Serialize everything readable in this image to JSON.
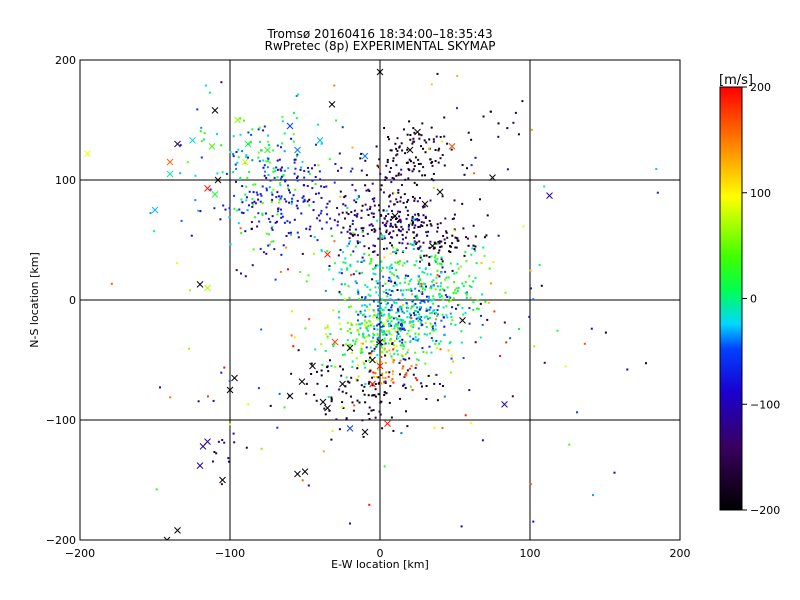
{
  "chart_data": {
    "type": "scatter",
    "title": "Tromsø 20160416 18:34:00–18:35:43",
    "subtitle": "RwPretec (8p) EXPERIMENTAL SKYMAP",
    "xlabel": "E-W location [km]",
    "ylabel": "N-S location [km]",
    "xlim": [
      -200,
      200
    ],
    "ylim": [
      -200,
      200
    ],
    "xticks": [
      -200,
      -100,
      0,
      100,
      200
    ],
    "yticks": [
      -200,
      -100,
      0,
      100,
      200
    ],
    "grid": true,
    "colorbar": {
      "label": "[m/s]",
      "min": -200,
      "max": 200,
      "ticks": [
        -200,
        -100,
        0,
        100,
        200
      ],
      "colormap": "black-purple-blue-cyan-green-yellow-red"
    },
    "clusters": [
      {
        "x": 5,
        "y": 65,
        "sx": 18,
        "sy": 18,
        "n": 230,
        "vmin": -200,
        "vmax": -90
      },
      {
        "x": 20,
        "y": 120,
        "sx": 14,
        "sy": 14,
        "n": 110,
        "vmin": -200,
        "vmax": -150
      },
      {
        "x": 40,
        "y": 50,
        "sx": 12,
        "sy": 12,
        "n": 70,
        "vmin": -200,
        "vmax": -150
      },
      {
        "x": -60,
        "y": 80,
        "sx": 25,
        "sy": 20,
        "n": 160,
        "vmin": -120,
        "vmax": -60
      },
      {
        "x": -80,
        "y": 110,
        "sx": 22,
        "sy": 25,
        "n": 160,
        "vmin": -80,
        "vmax": 60
      },
      {
        "x": 15,
        "y": -10,
        "sx": 18,
        "sy": 16,
        "n": 300,
        "vmin": -90,
        "vmax": 20
      },
      {
        "x": 0,
        "y": -30,
        "sx": 18,
        "sy": 14,
        "n": 210,
        "vmin": -30,
        "vmax": 100
      },
      {
        "x": 45,
        "y": 10,
        "sx": 15,
        "sy": 15,
        "n": 110,
        "vmin": -20,
        "vmax": 60
      },
      {
        "x": 0,
        "y": 30,
        "sx": 25,
        "sy": 15,
        "n": 110,
        "vmin": -40,
        "vmax": 40
      },
      {
        "x": -10,
        "y": -75,
        "sx": 22,
        "sy": 15,
        "n": 110,
        "vmin": -200,
        "vmax": -160
      },
      {
        "x": 10,
        "y": -60,
        "sx": 12,
        "sy": 10,
        "n": 40,
        "vmin": 120,
        "vmax": 200
      },
      {
        "x": -105,
        "y": -130,
        "sx": 8,
        "sy": 12,
        "n": 12,
        "vmin": -200,
        "vmax": -100
      },
      {
        "x": 80,
        "y": 150,
        "sx": 10,
        "sy": 15,
        "n": 12,
        "vmin": -200,
        "vmax": -100
      },
      {
        "x": 20,
        "y": 0,
        "sx": 70,
        "sy": 80,
        "n": 220,
        "vmin": -200,
        "vmax": 200
      }
    ],
    "crosses": [
      {
        "x": 0,
        "y": 190,
        "v": -200
      },
      {
        "x": -32,
        "y": 163,
        "v": -200
      },
      {
        "x": -110,
        "y": 158,
        "v": -200
      },
      {
        "x": -135,
        "y": 130,
        "v": -150
      },
      {
        "x": -140,
        "y": 115,
        "v": 160
      },
      {
        "x": -115,
        "y": 93,
        "v": 190
      },
      {
        "x": -195,
        "y": 122,
        "v": 90
      },
      {
        "x": -150,
        "y": 75,
        "v": -30
      },
      {
        "x": -125,
        "y": 133,
        "v": -20
      },
      {
        "x": -112,
        "y": 128,
        "v": 40
      },
      {
        "x": -95,
        "y": 150,
        "v": 60
      },
      {
        "x": -90,
        "y": 115,
        "v": 80
      },
      {
        "x": -88,
        "y": 130,
        "v": 10
      },
      {
        "x": -75,
        "y": 125,
        "v": 30
      },
      {
        "x": -60,
        "y": 145,
        "v": -50
      },
      {
        "x": -55,
        "y": 125,
        "v": -40
      },
      {
        "x": -40,
        "y": 133,
        "v": -30
      },
      {
        "x": -10,
        "y": 120,
        "v": -40
      },
      {
        "x": -108,
        "y": 100,
        "v": -200
      },
      {
        "x": 113,
        "y": 87,
        "v": -110
      },
      {
        "x": 48,
        "y": 128,
        "v": 170
      },
      {
        "x": 75,
        "y": 102,
        "v": -200
      },
      {
        "x": 20,
        "y": 125,
        "v": -200
      },
      {
        "x": 25,
        "y": 140,
        "v": -200
      },
      {
        "x": -20,
        "y": -40,
        "v": -200
      },
      {
        "x": -5,
        "y": -50,
        "v": -200
      },
      {
        "x": 0,
        "y": -35,
        "v": -200
      },
      {
        "x": -25,
        "y": -70,
        "v": -200
      },
      {
        "x": -45,
        "y": -55,
        "v": -200
      },
      {
        "x": -52,
        "y": -68,
        "v": -200
      },
      {
        "x": -60,
        "y": -80,
        "v": -200
      },
      {
        "x": -38,
        "y": -85,
        "v": -200
      },
      {
        "x": -35,
        "y": -90,
        "v": -200
      },
      {
        "x": -97,
        "y": -65,
        "v": -200
      },
      {
        "x": -100,
        "y": -75,
        "v": -200
      },
      {
        "x": -118,
        "y": -122,
        "v": -120
      },
      {
        "x": -115,
        "y": -118,
        "v": -110
      },
      {
        "x": -120,
        "y": -138,
        "v": -110
      },
      {
        "x": -105,
        "y": -150,
        "v": -200
      },
      {
        "x": -135,
        "y": -192,
        "v": -200
      },
      {
        "x": -142,
        "y": -200,
        "v": -200
      },
      {
        "x": -55,
        "y": -145,
        "v": -200
      },
      {
        "x": -50,
        "y": -143,
        "v": -200
      },
      {
        "x": -10,
        "y": -110,
        "v": -200
      },
      {
        "x": -20,
        "y": -107,
        "v": -50
      },
      {
        "x": 5,
        "y": -103,
        "v": 190
      },
      {
        "x": 0,
        "y": -55,
        "v": 190
      },
      {
        "x": -5,
        "y": -70,
        "v": 200
      },
      {
        "x": -30,
        "y": -35,
        "v": 170
      },
      {
        "x": -35,
        "y": 38,
        "v": 190
      },
      {
        "x": 55,
        "y": -17,
        "v": -200
      },
      {
        "x": 83,
        "y": -87,
        "v": -100
      },
      {
        "x": -115,
        "y": 10,
        "v": 70
      },
      {
        "x": -120,
        "y": 13,
        "v": -200
      },
      {
        "x": -140,
        "y": 105,
        "v": -10
      },
      {
        "x": -110,
        "y": 88,
        "v": 20
      },
      {
        "x": 35,
        "y": 45,
        "v": -200
      },
      {
        "x": 10,
        "y": 70,
        "v": -200
      },
      {
        "x": 30,
        "y": 80,
        "v": -200
      },
      {
        "x": 40,
        "y": 90,
        "v": -200
      }
    ]
  }
}
